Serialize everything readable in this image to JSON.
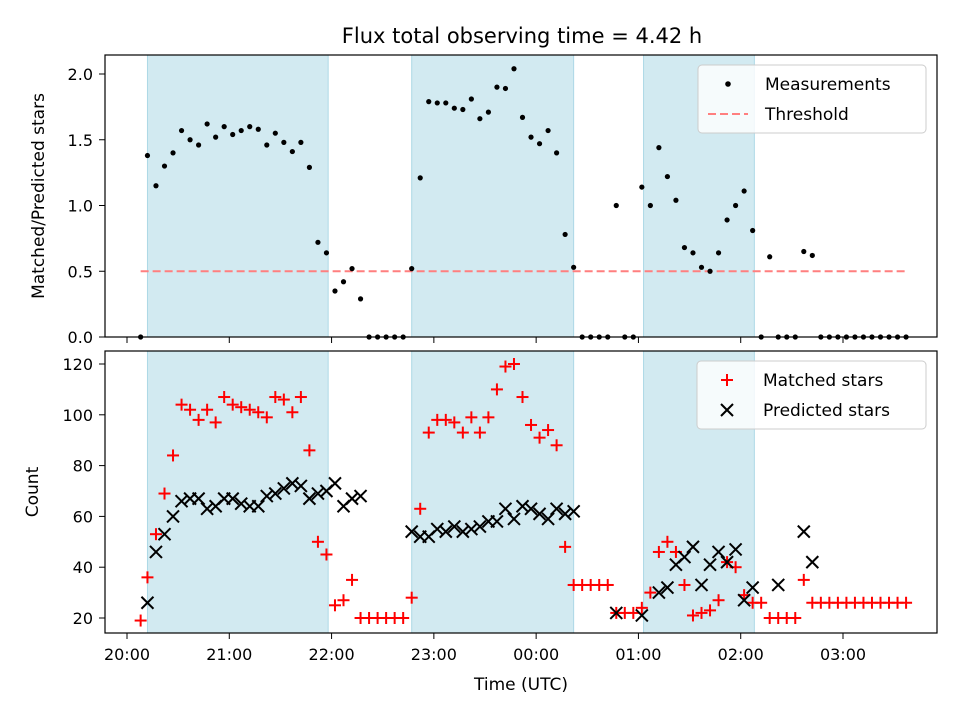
{
  "chart_data": [
    {
      "type": "scatter",
      "title": "Flux total observing time = 4.42 h",
      "xlabel": "",
      "ylabel": "Matched/Predicted stars",
      "ylim": [
        0,
        2.15
      ],
      "xlim": [
        "20:00",
        "03:57"
      ],
      "y_ticks": [
        "0.0",
        "0.5",
        "1.0",
        "1.5",
        "2.0"
      ],
      "legend_position": "top-right",
      "shaded_intervals": [
        [
          "20:12",
          "21:58"
        ],
        [
          "22:47",
          "00:22"
        ],
        [
          "01:03",
          "02:08"
        ]
      ],
      "shade_color": "#add8e6",
      "series": [
        {
          "name": "Measurements",
          "marker": "dot",
          "color": "#000000",
          "x": [
            "20:08",
            "20:12",
            "20:17",
            "20:22",
            "20:27",
            "20:32",
            "20:37",
            "20:42",
            "20:47",
            "20:52",
            "20:57",
            "21:02",
            "21:07",
            "21:12",
            "21:17",
            "21:22",
            "21:27",
            "21:32",
            "21:37",
            "21:42",
            "21:47",
            "21:52",
            "21:57",
            "22:02",
            "22:07",
            "22:12",
            "22:17",
            "22:22",
            "22:27",
            "22:32",
            "22:37",
            "22:42",
            "22:47",
            "22:52",
            "22:57",
            "23:02",
            "23:07",
            "23:12",
            "23:17",
            "23:22",
            "23:27",
            "23:32",
            "23:37",
            "23:42",
            "23:47",
            "23:52",
            "23:57",
            "00:02",
            "00:07",
            "00:12",
            "00:17",
            "00:22",
            "00:27",
            "00:32",
            "00:37",
            "00:42",
            "00:47",
            "00:52",
            "00:57",
            "01:02",
            "01:07",
            "01:12",
            "01:17",
            "01:22",
            "01:27",
            "01:32",
            "01:37",
            "01:42",
            "01:47",
            "01:52",
            "01:57",
            "02:02",
            "02:07",
            "02:12",
            "02:17",
            "02:22",
            "02:27",
            "02:32",
            "02:37",
            "02:42",
            "02:47",
            "02:52",
            "02:57",
            "03:02",
            "03:07",
            "03:12",
            "03:17",
            "03:22",
            "03:27",
            "03:32",
            "03:37"
          ],
          "y": [
            0.0,
            1.38,
            1.15,
            1.3,
            1.4,
            1.57,
            1.5,
            1.46,
            1.62,
            1.52,
            1.6,
            1.54,
            1.57,
            1.6,
            1.58,
            1.46,
            1.55,
            1.48,
            1.41,
            1.48,
            1.29,
            0.72,
            0.64,
            0.35,
            0.42,
            0.52,
            0.29,
            0.0,
            0.0,
            0.0,
            0.0,
            0.0,
            0.52,
            1.21,
            1.79,
            1.78,
            1.78,
            1.74,
            1.73,
            1.81,
            1.66,
            1.71,
            1.9,
            1.89,
            2.04,
            1.67,
            1.52,
            1.47,
            1.57,
            1.4,
            0.78,
            0.53,
            0.0,
            0.0,
            0.0,
            0.0,
            1.0,
            0.0,
            0.0,
            1.14,
            1.0,
            1.44,
            1.22,
            1.04,
            0.68,
            0.64,
            0.53,
            0.5,
            0.64,
            0.89,
            1.0,
            1.11,
            0.81,
            0.0,
            0.61,
            0.0,
            0.0,
            0.0,
            0.65,
            0.62,
            0.0,
            0.0,
            0.0,
            0.0,
            0.0,
            0.0,
            0.0,
            0.0,
            0.0,
            0.0,
            0.0
          ]
        },
        {
          "name": "Threshold",
          "marker": "dashed-line",
          "color": "#ff7f7f",
          "x": [
            "20:08",
            "03:37"
          ],
          "y": [
            0.5,
            0.5
          ]
        }
      ]
    },
    {
      "type": "scatter",
      "title": "",
      "xlabel": "Time (UTC)",
      "ylabel": "Count",
      "ylim": [
        14,
        126
      ],
      "xlim": [
        "20:00",
        "03:57"
      ],
      "x_ticks": [
        "20:00",
        "21:00",
        "22:00",
        "23:00",
        "00:00",
        "01:00",
        "02:00",
        "03:00"
      ],
      "y_ticks": [
        "20",
        "40",
        "60",
        "80",
        "100",
        "120"
      ],
      "legend_position": "top-right",
      "shaded_intervals": [
        [
          "20:12",
          "21:58"
        ],
        [
          "22:47",
          "00:22"
        ],
        [
          "01:03",
          "02:08"
        ]
      ],
      "shade_color": "#add8e6",
      "series": [
        {
          "name": "Matched stars",
          "marker": "plus",
          "color": "#ff0000",
          "x": [
            "20:08",
            "20:12",
            "20:17",
            "20:22",
            "20:27",
            "20:32",
            "20:37",
            "20:42",
            "20:47",
            "20:52",
            "20:57",
            "21:02",
            "21:07",
            "21:12",
            "21:17",
            "21:22",
            "21:27",
            "21:32",
            "21:37",
            "21:42",
            "21:47",
            "21:52",
            "21:57",
            "22:02",
            "22:07",
            "22:12",
            "22:17",
            "22:22",
            "22:27",
            "22:32",
            "22:37",
            "22:42",
            "22:47",
            "22:52",
            "22:57",
            "23:02",
            "23:07",
            "23:12",
            "23:17",
            "23:22",
            "23:27",
            "23:32",
            "23:37",
            "23:42",
            "23:47",
            "23:52",
            "23:57",
            "00:02",
            "00:07",
            "00:12",
            "00:17",
            "00:22",
            "00:27",
            "00:32",
            "00:37",
            "00:42",
            "00:47",
            "00:52",
            "00:57",
            "01:02",
            "01:07",
            "01:12",
            "01:17",
            "01:22",
            "01:27",
            "01:32",
            "01:37",
            "01:42",
            "01:47",
            "01:52",
            "01:57",
            "02:02",
            "02:07",
            "02:12",
            "02:17",
            "02:22",
            "02:27",
            "02:32",
            "02:37",
            "02:42",
            "02:47",
            "02:52",
            "02:57",
            "03:02",
            "03:07",
            "03:12",
            "03:17",
            "03:22",
            "03:27",
            "03:32",
            "03:37"
          ],
          "y": [
            19,
            36,
            53,
            69,
            84,
            104,
            102,
            98,
            102,
            97,
            107,
            104,
            103,
            102,
            101,
            99,
            107,
            106,
            101,
            107,
            86,
            50,
            45,
            25,
            27,
            35,
            20,
            20,
            20,
            20,
            20,
            20,
            28,
            63,
            93,
            98,
            98,
            97,
            93,
            99,
            93,
            99,
            110,
            119,
            120,
            107,
            96,
            91,
            94,
            88,
            48,
            33,
            33,
            33,
            33,
            33,
            22,
            22,
            22,
            24,
            30,
            46,
            50,
            46,
            33,
            21,
            22,
            23,
            27,
            42,
            40,
            29,
            26,
            26,
            20,
            20,
            20,
            20,
            35,
            26,
            26,
            26,
            26,
            26,
            26,
            26,
            26,
            26,
            26,
            26,
            26
          ]
        },
        {
          "name": "Predicted stars",
          "marker": "x",
          "color": "#000000",
          "x": [
            "20:12",
            "20:17",
            "20:22",
            "20:27",
            "20:32",
            "20:37",
            "20:42",
            "20:47",
            "20:52",
            "20:57",
            "21:02",
            "21:07",
            "21:12",
            "21:17",
            "21:22",
            "21:27",
            "21:32",
            "21:37",
            "21:42",
            "21:47",
            "21:52",
            "21:57",
            "22:02",
            "22:07",
            "22:12",
            "22:17",
            "22:47",
            "22:52",
            "22:57",
            "23:02",
            "23:07",
            "23:12",
            "23:17",
            "23:22",
            "23:27",
            "23:32",
            "23:37",
            "23:42",
            "23:47",
            "23:52",
            "23:57",
            "00:02",
            "00:07",
            "00:12",
            "00:17",
            "00:22",
            "00:47",
            "01:02",
            "01:12",
            "01:17",
            "01:22",
            "01:27",
            "01:32",
            "01:37",
            "01:42",
            "01:47",
            "01:52",
            "01:57",
            "02:02",
            "02:07",
            "02:22",
            "02:37",
            "02:42"
          ],
          "y": [
            26,
            46,
            53,
            60,
            66,
            67,
            67,
            63,
            64,
            67,
            67,
            65,
            64,
            64,
            68,
            69,
            71,
            73,
            72,
            67,
            69,
            70,
            73,
            64,
            67,
            68,
            54,
            52,
            52,
            55,
            54,
            56,
            54,
            55,
            56,
            58,
            58,
            63,
            59,
            64,
            63,
            61,
            59,
            63,
            61,
            62,
            22,
            21,
            30,
            32,
            41,
            44,
            48,
            33,
            41,
            46,
            42,
            47,
            27,
            32,
            33,
            54,
            42
          ]
        }
      ]
    }
  ]
}
